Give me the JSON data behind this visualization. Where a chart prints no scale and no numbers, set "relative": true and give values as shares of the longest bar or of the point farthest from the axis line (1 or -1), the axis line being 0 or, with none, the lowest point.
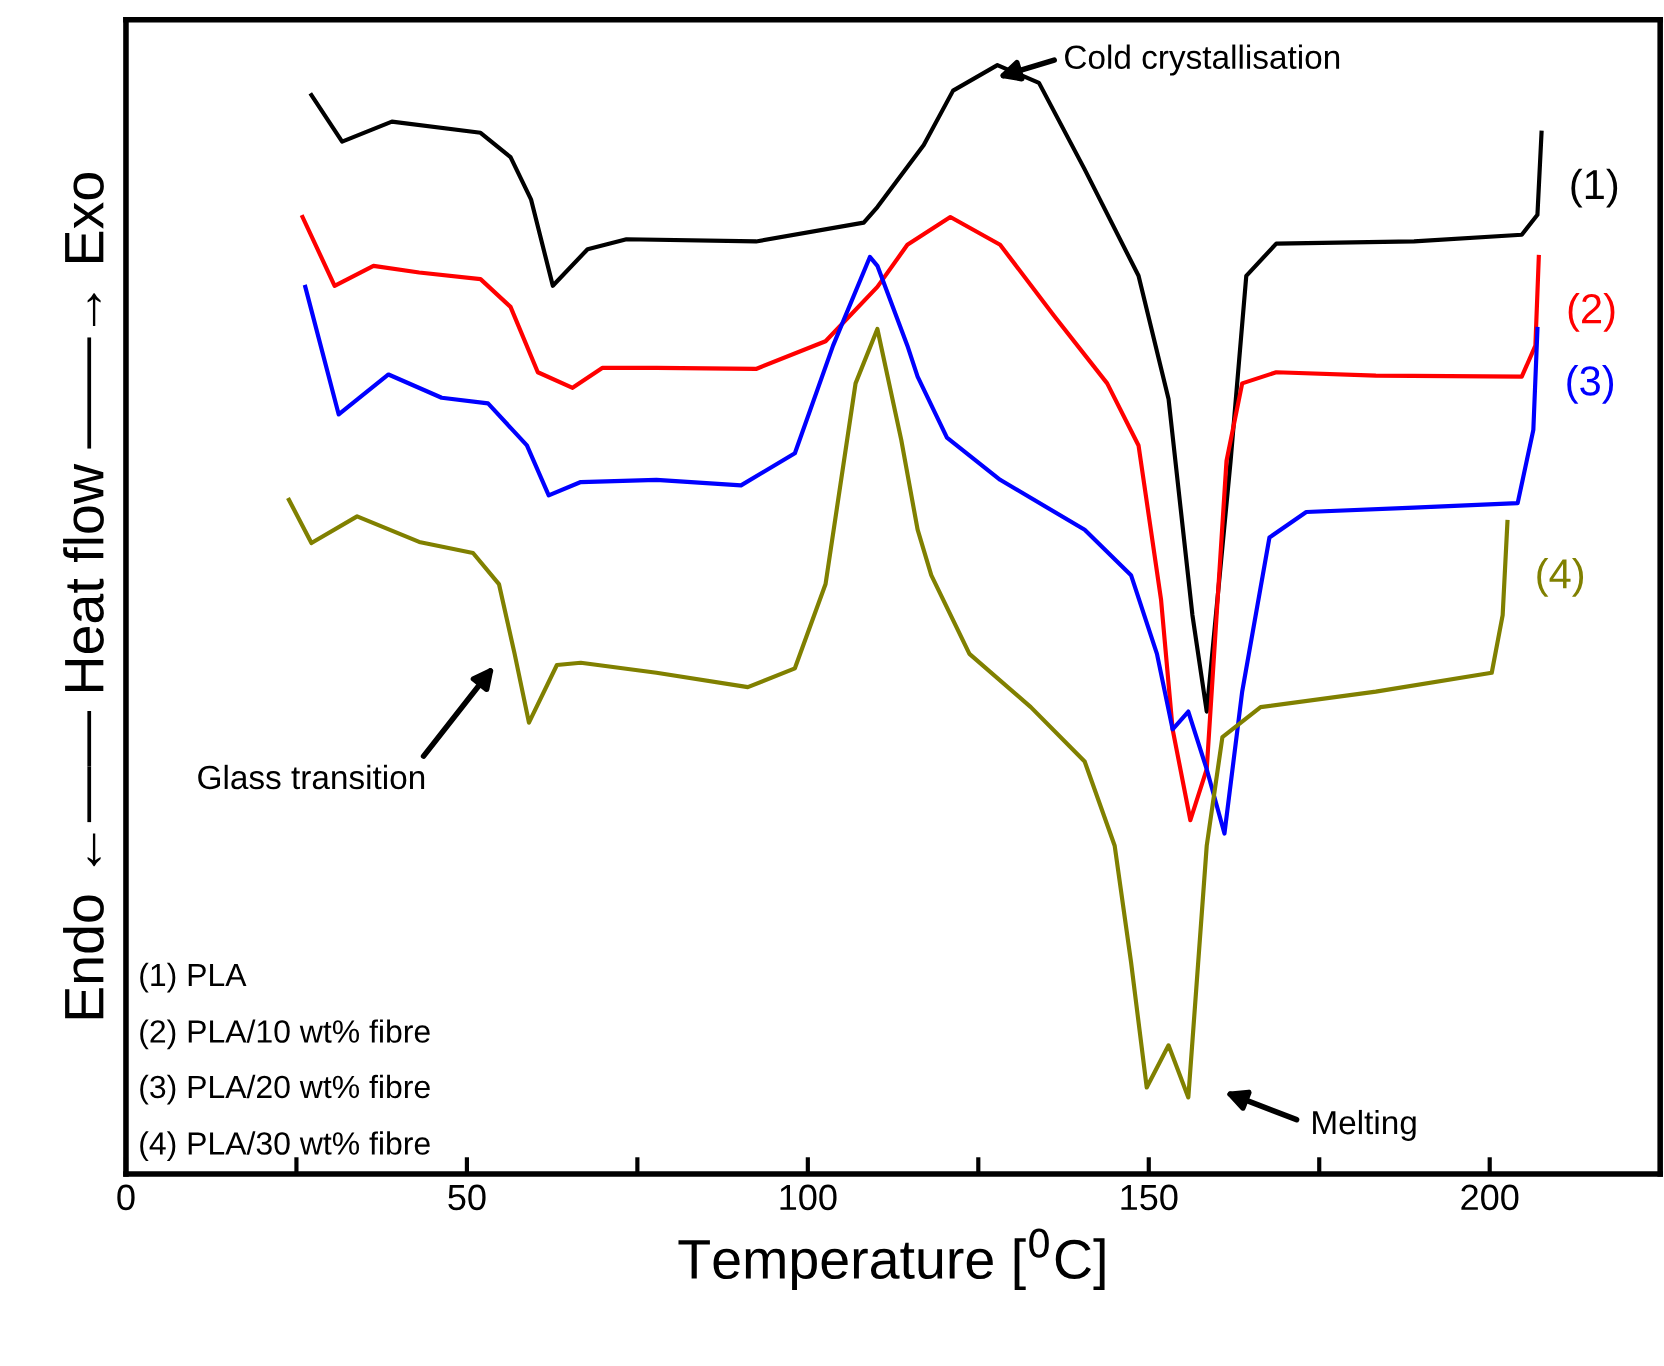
{
  "chart_data": {
    "type": "line",
    "relative": true,
    "xlabel": "Temperature [$^{0}$C]",
    "ylabel": "Endo ←—— Heat flow ——→ Exo",
    "xlim": [
      0,
      225
    ],
    "xticks": [
      0,
      {
        "value": 25,
        "label": null
      },
      50,
      {
        "value": 75,
        "label": null
      },
      100,
      {
        "value": 125,
        "label": null
      },
      150,
      {
        "value": 175,
        "label": null
      },
      200
    ],
    "tick_labels": "x",
    "grid": false,
    "legend": false,
    "marker": "none",
    "line_style": "solid",
    "series": [
      {
        "name": "(1)",
        "color": "#000000",
        "x": [
          27.2,
          31.7,
          39.0,
          52.0,
          56.4,
          59.4,
          62.6,
          67.7,
          73.4,
          92.4,
          108.2,
          110.2,
          117.0,
          121.3,
          127.8,
          133.9,
          140.6,
          148.5,
          152.9,
          156.4,
          158.5,
          162.0,
          164.3,
          168.7,
          188.9,
          204.7,
          207.0,
          207.6
        ],
        "values": [
          0.973,
          0.931,
          0.949,
          0.939,
          0.917,
          0.879,
          0.801,
          0.834,
          0.843,
          0.841,
          0.858,
          0.872,
          0.928,
          0.977,
          1.0,
          0.984,
          0.906,
          0.81,
          0.699,
          0.504,
          0.417,
          0.643,
          0.81,
          0.839,
          0.841,
          0.847,
          0.865,
          0.939
        ]
      },
      {
        "name": "(2)",
        "color": "#ff0000",
        "x": [
          25.9,
          30.6,
          36.3,
          43.0,
          52.0,
          56.4,
          60.4,
          65.5,
          69.9,
          77.8,
          92.4,
          102.6,
          110.2,
          114.6,
          120.9,
          128.2,
          136.1,
          143.9,
          148.5,
          151.8,
          153.5,
          156.1,
          158.5,
          161.4,
          163.7,
          168.7,
          183.3,
          204.7,
          206.7,
          207.2
        ],
        "values": [
          0.863,
          0.801,
          0.819,
          0.813,
          0.807,
          0.782,
          0.723,
          0.709,
          0.727,
          0.727,
          0.726,
          0.751,
          0.8,
          0.838,
          0.863,
          0.838,
          0.774,
          0.713,
          0.657,
          0.518,
          0.401,
          0.319,
          0.365,
          0.643,
          0.713,
          0.723,
          0.72,
          0.719,
          0.747,
          0.827
        ]
      },
      {
        "name": "(3)",
        "color": "#0000ff",
        "x": [
          26.3,
          31.2,
          38.5,
          46.3,
          53.1,
          58.8,
          62.0,
          66.7,
          77.8,
          90.2,
          98.1,
          103.7,
          109.1,
          110.2,
          114.6,
          116.1,
          120.4,
          128.2,
          140.6,
          147.4,
          151.2,
          153.5,
          155.8,
          158.5,
          161.1,
          163.7,
          167.7,
          173.1,
          188.9,
          204.1,
          206.4,
          207.0
        ],
        "values": [
          0.8,
          0.685,
          0.721,
          0.7,
          0.695,
          0.657,
          0.612,
          0.624,
          0.626,
          0.621,
          0.65,
          0.747,
          0.827,
          0.819,
          0.747,
          0.719,
          0.664,
          0.626,
          0.581,
          0.54,
          0.469,
          0.401,
          0.417,
          0.365,
          0.307,
          0.435,
          0.574,
          0.597,
          0.601,
          0.605,
          0.671,
          0.762
        ]
      },
      {
        "name": "(4)",
        "color": "#808000",
        "x": [
          23.9,
          27.2,
          33.9,
          43.0,
          50.9,
          54.7,
          57.0,
          59.1,
          63.2,
          66.7,
          77.8,
          91.2,
          98.1,
          102.6,
          107.0,
          110.2,
          113.7,
          116.1,
          118.1,
          123.7,
          132.7,
          140.6,
          145.0,
          147.4,
          149.7,
          152.9,
          155.8,
          158.5,
          160.8,
          166.4,
          183.3,
          200.3,
          201.9,
          202.6
        ],
        "values": [
          0.608,
          0.569,
          0.593,
          0.57,
          0.56,
          0.532,
          0.469,
          0.407,
          0.459,
          0.461,
          0.452,
          0.439,
          0.456,
          0.532,
          0.713,
          0.762,
          0.662,
          0.581,
          0.54,
          0.469,
          0.421,
          0.372,
          0.296,
          0.191,
          0.078,
          0.116,
          0.069,
          0.296,
          0.394,
          0.421,
          0.435,
          0.452,
          0.504,
          0.588
        ]
      }
    ],
    "annotations": [
      "Cold crystallisation",
      "Glass transition",
      "Melting",
      "(1) PLA",
      "(2) PLA/10 wt% fibre",
      "(3) PLA/20 wt% fibre",
      "(4) PLA/30 wt% fibre"
    ]
  }
}
